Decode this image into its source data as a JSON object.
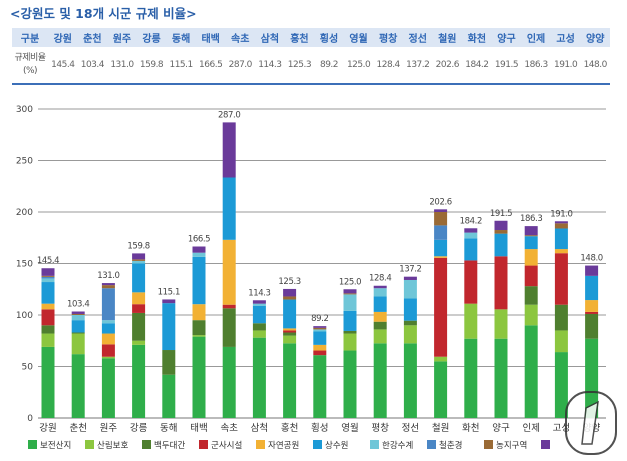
{
  "title": "<강원도 및 18개 시군 규제 비율>",
  "table": {
    "header_label": "구분",
    "row_label": "규제비율",
    "row_unit": "(%)",
    "columns": [
      "강원",
      "춘천",
      "원주",
      "강릉",
      "동해",
      "태백",
      "속초",
      "삼척",
      "홍천",
      "횡성",
      "영월",
      "평창",
      "정선",
      "철원",
      "화천",
      "양구",
      "인제",
      "고성",
      "양양"
    ],
    "values": [
      "145.4",
      "103.4",
      "131.0",
      "159.8",
      "115.1",
      "166.5",
      "287.0",
      "114.3",
      "125.3",
      "89.2",
      "125.0",
      "128.4",
      "137.2",
      "202.6",
      "184.2",
      "191.5",
      "186.3",
      "191.0",
      "148.0"
    ]
  },
  "watermark": "news1",
  "chart_data": {
    "type": "bar",
    "stacked": true,
    "categories": [
      "강원",
      "춘천",
      "원주",
      "강릉",
      "동해",
      "태백",
      "속초",
      "삼척",
      "홍천",
      "횡성",
      "영월",
      "평창",
      "정선",
      "철원",
      "화천",
      "양구",
      "인제",
      "고성",
      "양양"
    ],
    "totals": [
      "145.4",
      "103.4",
      "131.0",
      "159.8",
      "115.1",
      "166.5",
      "287.0",
      "114.3",
      "125.3",
      "89.2",
      "125.0",
      "128.4",
      "137.2",
      "202.6",
      "184.2",
      "191.5",
      "186.3",
      "191.0",
      "148.0"
    ],
    "ylim": [
      0,
      300
    ],
    "yticks": [
      "0",
      "50",
      "100",
      "150",
      "200",
      "250",
      "300"
    ],
    "grid": true,
    "legend_position": "bottom",
    "series": [
      {
        "name": "보전산지",
        "color": "#2fae4a",
        "values": [
          69,
          62,
          58,
          71,
          42,
          79,
          69,
          78,
          72.5,
          61,
          65.5,
          72.5,
          72.5,
          55,
          77,
          77,
          90,
          64,
          77
        ]
      },
      {
        "name": "산림보호",
        "color": "#8cc63f",
        "values": [
          13,
          20,
          1.5,
          4,
          0,
          1.5,
          0,
          7,
          7.5,
          0,
          16.5,
          13.5,
          17.5,
          4.5,
          34,
          28.5,
          20,
          21,
          0
        ]
      },
      {
        "name": "백두대간",
        "color": "#4f7f2f",
        "values": [
          8,
          1,
          0,
          27,
          24,
          14.5,
          37.5,
          7,
          3,
          0,
          2.5,
          7.5,
          4.5,
          0,
          0,
          0,
          18,
          25,
          24
        ]
      },
      {
        "name": "군사시설",
        "color": "#c1272d",
        "values": [
          15.5,
          0,
          12,
          8.5,
          0,
          0,
          3.5,
          0,
          2,
          4.5,
          0,
          0,
          0,
          96,
          42,
          51.5,
          20,
          50,
          2
        ]
      },
      {
        "name": "자연공원",
        "color": "#f2b134",
        "values": [
          5.5,
          0,
          10.5,
          11.5,
          0,
          15.5,
          63,
          0,
          2,
          5.5,
          0,
          9.5,
          0,
          1.5,
          0,
          0,
          16,
          4,
          11.5
        ]
      },
      {
        "name": "상수원",
        "color": "#1c9ad6",
        "values": [
          21,
          12,
          10,
          28,
          45.5,
          46,
          60.5,
          17,
          28,
          13,
          19.5,
          15,
          21.5,
          16,
          21.5,
          22,
          12.5,
          20,
          23.5
        ]
      },
      {
        "name": "한강수계",
        "color": "#6fc6d8",
        "values": [
          3.5,
          5,
          3,
          2.5,
          0,
          4,
          0,
          2,
          0,
          2,
          16,
          8,
          18,
          0,
          5.5,
          0,
          0,
          0,
          0
        ]
      },
      {
        "name": "철춘경",
        "color": "#4a86c5",
        "values": [
          1.5,
          0,
          31,
          0,
          0,
          0,
          0,
          0,
          0,
          0,
          0,
          0,
          0,
          14,
          0,
          0,
          0,
          0,
          0
        ]
      },
      {
        "name": "농지구역",
        "color": "#9a6a35",
        "values": [
          1,
          1,
          3,
          1.5,
          0,
          0,
          0,
          0,
          3,
          1.5,
          1,
          0,
          0,
          13,
          0,
          3.5,
          1,
          5,
          0
        ]
      },
      {
        "name": "",
        "color": "#6a3a9a",
        "values": [
          7.4,
          2.4,
          2,
          5.8,
          3.6,
          6,
          53.5,
          3.3,
          7.3,
          1.7,
          4,
          2.4,
          3.2,
          2.6,
          4.2,
          9,
          8.8,
          2,
          10
        ]
      }
    ]
  }
}
